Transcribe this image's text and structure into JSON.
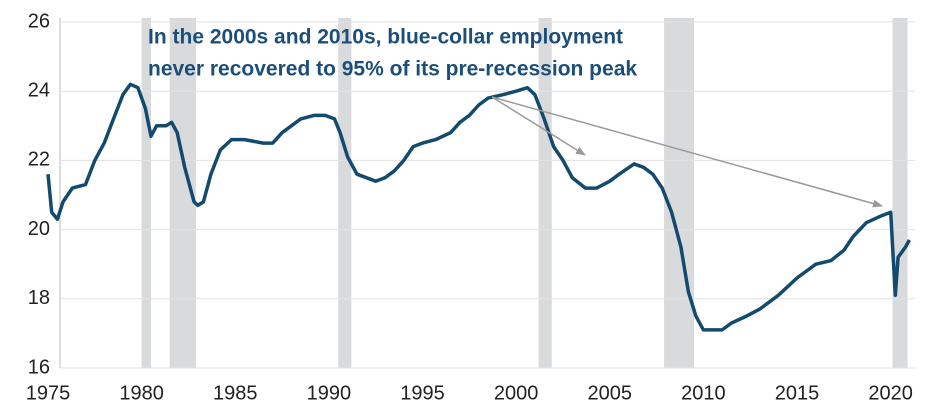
{
  "chart_data": {
    "type": "line",
    "annotation": [
      "In the 2000s and 2010s, blue-collar employment",
      "never recovered to 95% of its pre-recession peak"
    ],
    "color": "#134a6e",
    "recession_color": "#d9dadc",
    "recessions": [
      [
        1980.0,
        1980.5
      ],
      [
        1981.5,
        1982.9
      ],
      [
        1990.5,
        1991.2
      ],
      [
        2001.2,
        2001.9
      ],
      [
        2007.9,
        2009.5
      ],
      [
        2020.1,
        2020.9
      ]
    ],
    "x": [
      1975.0,
      1975.2,
      1975.5,
      1975.8,
      1976.3,
      1977,
      1977.5,
      1978,
      1978.5,
      1979,
      1979.4,
      1979.8,
      1980.2,
      1980.5,
      1980.8,
      1981.3,
      1981.6,
      1981.9,
      1982.3,
      1982.8,
      1983.0,
      1983.3,
      1983.7,
      1984.2,
      1984.8,
      1985.5,
      1986.5,
      1987,
      1987.5,
      1988,
      1988.5,
      1989.2,
      1989.8,
      1990.3,
      1990.6,
      1991,
      1991.5,
      1992,
      1992.5,
      1993,
      1993.5,
      1994,
      1994.5,
      1995,
      1995.7,
      1996.5,
      1997,
      1997.5,
      1998,
      1998.5,
      1999.3,
      2000,
      2000.6,
      2001,
      2001.5,
      2002,
      2002.5,
      2003,
      2003.7,
      2004.3,
      2005,
      2005.5,
      2006.3,
      2006.8,
      2007.3,
      2007.8,
      2008.3,
      2008.8,
      2009.2,
      2009.6,
      2010,
      2010.5,
      2011,
      2011.5,
      2012.3,
      2013,
      2014,
      2015,
      2016,
      2016.8,
      2017.5,
      2018,
      2018.7,
      2019.5,
      2020.0,
      2020.25,
      2020.4,
      2020.8,
      2021.0
    ],
    "values": [
      21.6,
      20.5,
      20.3,
      20.8,
      21.2,
      21.3,
      22.0,
      22.5,
      23.2,
      23.9,
      24.2,
      24.1,
      23.5,
      22.7,
      23.0,
      23.0,
      23.1,
      22.8,
      21.8,
      20.8,
      20.7,
      20.8,
      21.6,
      22.3,
      22.6,
      22.6,
      22.5,
      22.5,
      22.8,
      23.0,
      23.2,
      23.3,
      23.3,
      23.2,
      22.8,
      22.1,
      21.6,
      21.5,
      21.4,
      21.5,
      21.7,
      22.0,
      22.4,
      22.5,
      22.6,
      22.8,
      23.1,
      23.3,
      23.6,
      23.8,
      23.9,
      24.0,
      24.1,
      23.9,
      23.2,
      22.4,
      22.0,
      21.5,
      21.2,
      21.2,
      21.4,
      21.6,
      21.9,
      21.8,
      21.6,
      21.2,
      20.5,
      19.5,
      18.2,
      17.5,
      17.1,
      17.1,
      17.1,
      17.3,
      17.5,
      17.7,
      18.1,
      18.6,
      19.0,
      19.1,
      19.4,
      19.8,
      20.2,
      20.4,
      20.5,
      18.1,
      19.2,
      19.5,
      19.7
    ],
    "xlim": [
      1975,
      2021.3
    ],
    "xticks": [
      1975,
      1980,
      1985,
      1990,
      1995,
      2000,
      2005,
      2010,
      2015,
      2020
    ],
    "ylim": [
      16,
      26
    ],
    "yticks": [
      16,
      18,
      20,
      22,
      24,
      26
    ],
    "grid": true
  }
}
